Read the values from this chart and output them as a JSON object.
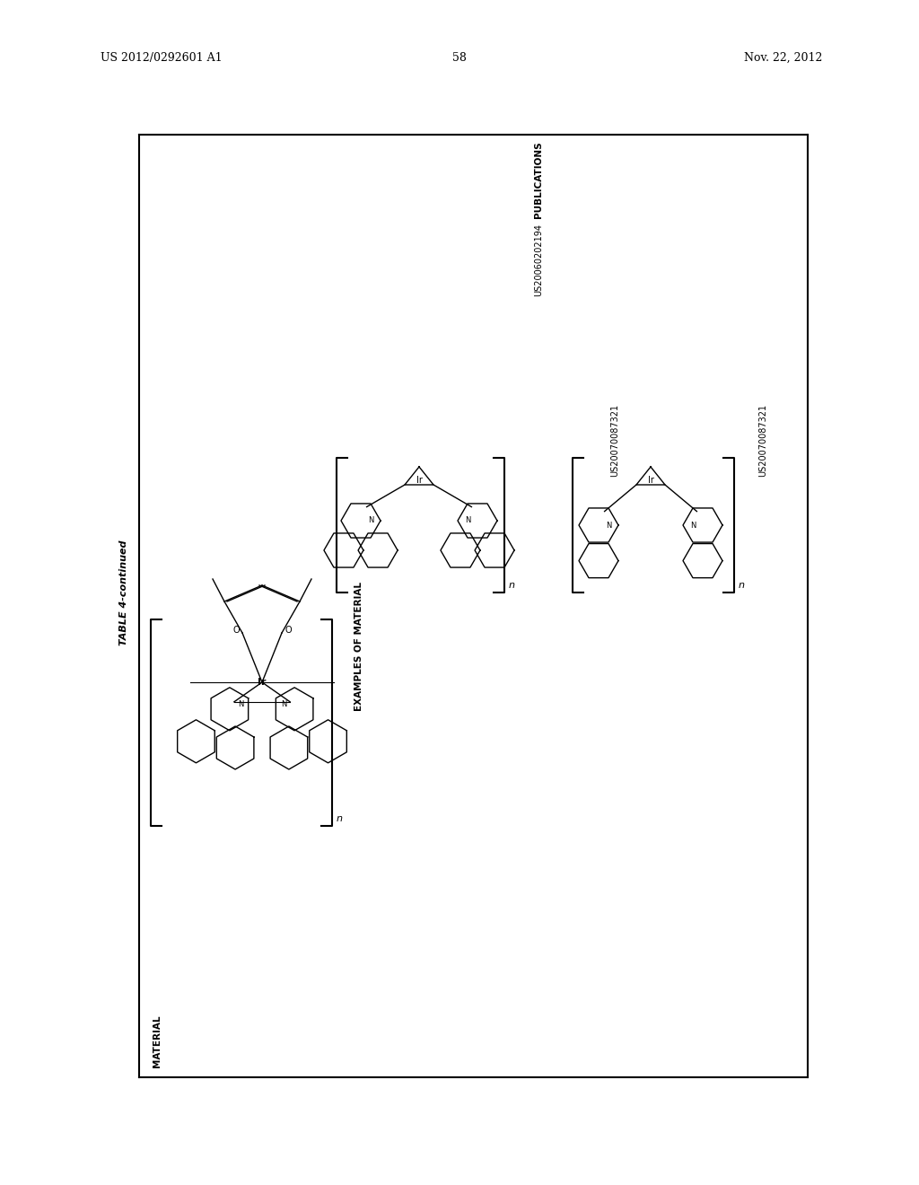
{
  "page_number": "58",
  "patent_number": "US 2012/0292601 A1",
  "date": "Nov. 22, 2012",
  "table_title": "TABLE 4-continued",
  "col_material": "MATERIAL",
  "col_examples": "EXAMPLES OF MATERIAL",
  "col_publications": "PUBLICATIONS",
  "pub1": "US20060202194",
  "pub2": "US20070087321",
  "pub3": "US20070087321",
  "background_color": "#ffffff",
  "text_color": "#000000",
  "line_color": "#000000"
}
